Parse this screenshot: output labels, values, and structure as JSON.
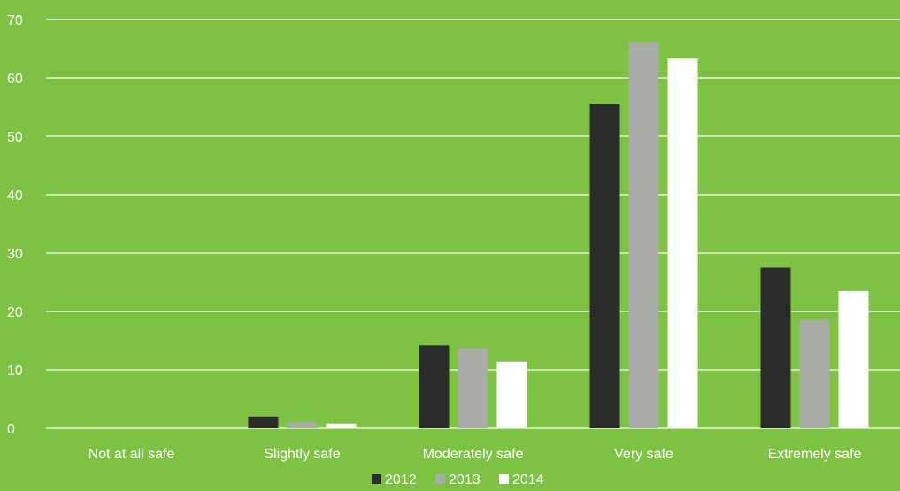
{
  "chart_data": {
    "type": "bar",
    "categories": [
      "Not at all safe",
      "Slightly safe",
      "Moderately safe",
      "Very safe",
      "Extremely safe"
    ],
    "series": [
      {
        "name": "2012",
        "color": "#2b2d2b",
        "values": [
          0,
          2,
          14.2,
          55.5,
          27.5
        ]
      },
      {
        "name": "2013",
        "color": "#a9aba6",
        "values": [
          0,
          1,
          13.7,
          66,
          18.5
        ]
      },
      {
        "name": "2014",
        "color": "#ffffff",
        "values": [
          0,
          0.8,
          11.4,
          63.3,
          23.5
        ]
      }
    ],
    "yticks": [
      "0",
      "10",
      "20",
      "30",
      "40",
      "50",
      "60",
      "70"
    ],
    "ylim": [
      0,
      70
    ],
    "grid": true,
    "legend_position": "bottom-center",
    "background": "#7dc242",
    "gridline_color": "#e6f2d4"
  }
}
